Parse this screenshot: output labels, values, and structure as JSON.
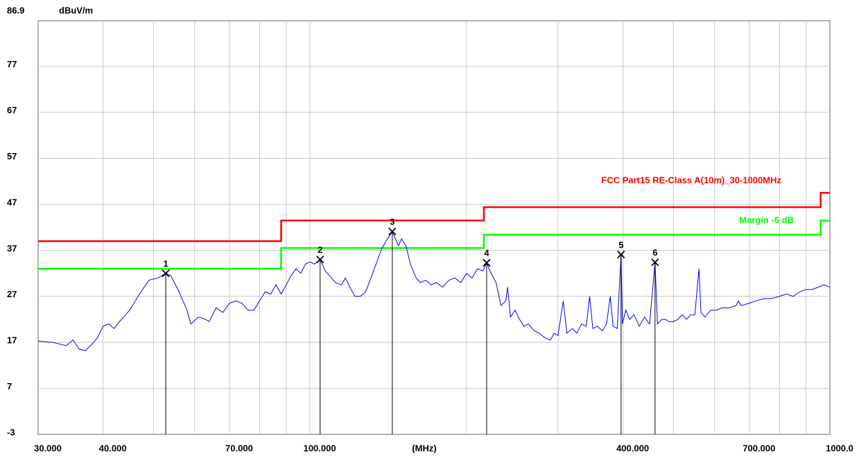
{
  "chart_data": {
    "type": "line",
    "y_label": "dBuV/m",
    "x_label": "(MHz)",
    "xlog": true,
    "grid": true,
    "xlim": [
      30,
      1000
    ],
    "ylim": [
      -3,
      86.9
    ],
    "xticks": [
      {
        "value": 30,
        "label": "30.000"
      },
      {
        "value": 40,
        "label": "40.000"
      },
      {
        "value": 70,
        "label": "70.000"
      },
      {
        "value": 100,
        "label": "100.000"
      },
      {
        "value": 400,
        "label": "400.000"
      },
      {
        "value": 700,
        "label": "700.000"
      },
      {
        "value": 1000,
        "label": "1000.0"
      }
    ],
    "xminor": [
      50,
      60,
      80,
      90,
      200,
      300,
      500,
      600,
      800,
      900
    ],
    "yticks": [
      86.9,
      77,
      67,
      57,
      47,
      37,
      27,
      17,
      7,
      -3
    ],
    "series": [
      {
        "name": "FCC Part15 RE-Class A(10m)_30-1000MHz",
        "color": "#ff0000",
        "x": [
          30,
          88,
          88,
          216,
          216,
          960,
          960,
          1000
        ],
        "values": [
          39,
          39,
          43.5,
          43.5,
          46.4,
          46.4,
          49.5,
          49.5
        ]
      },
      {
        "name": "Margin -6 dB",
        "color": "#00ff00",
        "x": [
          30,
          88,
          88,
          216,
          216,
          960,
          960,
          1000
        ],
        "values": [
          33,
          33,
          37.5,
          37.5,
          40.4,
          40.4,
          43.5,
          43.5
        ]
      },
      {
        "color": "#0000ff",
        "x": [
          30,
          32,
          34,
          35,
          36,
          37,
          38,
          39,
          40,
          41,
          42,
          43,
          45,
          47,
          49,
          51,
          52.8,
          54,
          56,
          58,
          59,
          61,
          63,
          64,
          66,
          68,
          70,
          72,
          74,
          76,
          78,
          80,
          82,
          84,
          86,
          88,
          90,
          92,
          94,
          96,
          98,
          100,
          102,
          104.6,
          107,
          110,
          112,
          115,
          117,
          120,
          122,
          125,
          128,
          131,
          134,
          137,
          140,
          142,
          144,
          146,
          148,
          150,
          153,
          156,
          160,
          163,
          167,
          171,
          175,
          180,
          185,
          190,
          195,
          200,
          205,
          210,
          215,
          218.7,
          222,
          228,
          233,
          238,
          240,
          243,
          248,
          253,
          258,
          263,
          270,
          276,
          283,
          290,
          295,
          300,
          307,
          312,
          320,
          326,
          333,
          340,
          345,
          350,
          357,
          365,
          372,
          378,
          383,
          390,
          396.6,
          399,
          405,
          412,
          420,
          430,
          440,
          450,
          461,
          466,
          475,
          483,
          490,
          500,
          510,
          520,
          530,
          540,
          550,
          560,
          565,
          575,
          590,
          605,
          620,
          640,
          660,
          667,
          675,
          700,
          720,
          745,
          770,
          800,
          825,
          850,
          875,
          900,
          925,
          950,
          975,
          1000
        ],
        "values": [
          17.3,
          17,
          16.3,
          17.5,
          15.5,
          15.2,
          16.5,
          18,
          20.5,
          21,
          20,
          21.5,
          24,
          27.5,
          30.5,
          31,
          32,
          31.5,
          28,
          24,
          21,
          22.5,
          22,
          21.5,
          24.5,
          23.5,
          25.5,
          26,
          25.5,
          24,
          24,
          26,
          28,
          27.5,
          29.5,
          27.5,
          29.5,
          31.5,
          33,
          32,
          34,
          34.5,
          34,
          35,
          32.5,
          31,
          30,
          29.5,
          31,
          28.5,
          27,
          27,
          28,
          31,
          34,
          37,
          39,
          40,
          41.1,
          39.5,
          38,
          39.5,
          38,
          34,
          31,
          30,
          30.5,
          29.5,
          30,
          29,
          30.5,
          31,
          30,
          32,
          31,
          33,
          32.5,
          34.3,
          32.5,
          30,
          25,
          26,
          29,
          22.5,
          24,
          22,
          20.5,
          21,
          19.5,
          19,
          18,
          17.5,
          19,
          18.5,
          26,
          19,
          20,
          19,
          21,
          20.5,
          27,
          20,
          20.5,
          19.5,
          21,
          27,
          20.5,
          20,
          36.1,
          21,
          24,
          22,
          23,
          20.5,
          22.5,
          21,
          34.4,
          21,
          22,
          22,
          21.5,
          21.5,
          22,
          23,
          22,
          23,
          23,
          33,
          23.5,
          22.5,
          24,
          24,
          24.5,
          24.5,
          25,
          26,
          25,
          25.5,
          26,
          26.5,
          26.5,
          27,
          27.5,
          27,
          28,
          28.5,
          28.5,
          29,
          29.5,
          29
        ]
      }
    ],
    "markers": {
      "labels": [
        "1",
        "2",
        "3",
        "4",
        "5",
        "6"
      ],
      "x": [
        52.8,
        104.6,
        144,
        218.7,
        396.6,
        461
      ],
      "values": [
        32,
        35,
        41.1,
        34.3,
        36.1,
        34.4
      ]
    }
  }
}
